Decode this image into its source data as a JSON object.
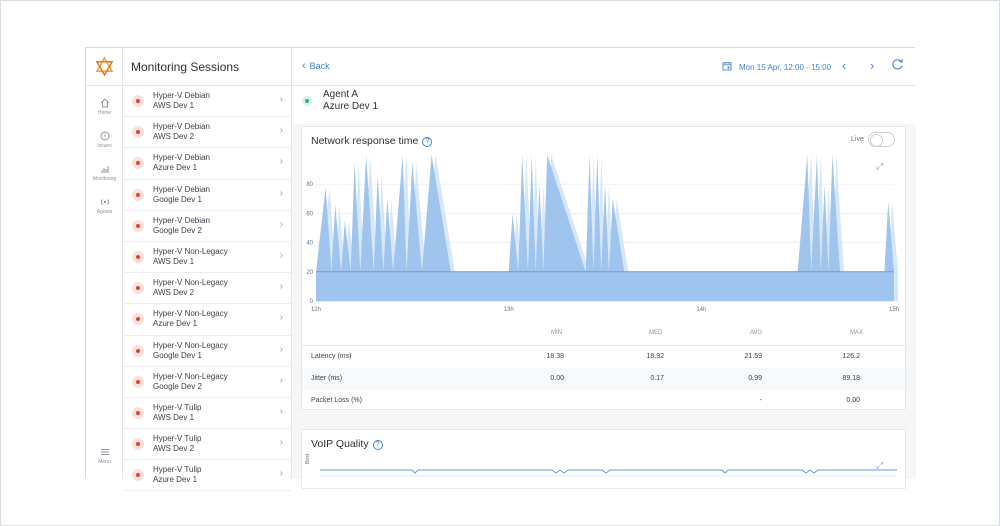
{
  "sessions_panel": {
    "title": "Monitoring Sessions",
    "items": [
      {
        "line1": "Hyper-V Debian",
        "line2": "AWS Dev 1"
      },
      {
        "line1": "Hyper-V Debian",
        "line2": "AWS Dev 2"
      },
      {
        "line1": "Hyper-V Debian",
        "line2": "Azure Dev 1"
      },
      {
        "line1": "Hyper-V Debian",
        "line2": "Google Dev 1"
      },
      {
        "line1": "Hyper-V Debian",
        "line2": "Google Dev 2"
      },
      {
        "line1": "Hyper-V Non-Legacy",
        "line2": "AWS Dev 1"
      },
      {
        "line1": "Hyper-V Non-Legacy",
        "line2": "AWS Dev 2"
      },
      {
        "line1": "Hyper-V Non-Legacy",
        "line2": "Azure Dev 1"
      },
      {
        "line1": "Hyper-V Non-Legacy",
        "line2": "Google Dev 1"
      },
      {
        "line1": "Hyper-V Non-Legacy",
        "line2": "Google Dev 2"
      },
      {
        "line1": "Hyper-V Tulip",
        "line2": "AWS Dev 1"
      },
      {
        "line1": "Hyper-V Tulip",
        "line2": "AWS Dev 2"
      },
      {
        "line1": "Hyper-V Tulip",
        "line2": "Azure Dev 1"
      }
    ]
  },
  "nav": {
    "home": "Home",
    "issues": "Issues",
    "monitoring": "Monitoring",
    "agents": "Agents",
    "menu": "Menu"
  },
  "topbar": {
    "back_label": "Back",
    "date_range": "Mon 15 Apr, 12:00 - 15:00"
  },
  "agent": {
    "name": "Agent A",
    "location": "Azure Dev 1"
  },
  "network_card": {
    "title": "Network response time",
    "live_label": "Live"
  },
  "chart_data": {
    "type": "area",
    "title": "Network response time",
    "x_ticks": [
      "12h",
      "13h",
      "14h",
      "15h"
    ],
    "y_ticks": [
      0,
      20,
      40,
      60,
      80
    ],
    "ylim": [
      0,
      100
    ],
    "xlim": [
      12,
      15
    ],
    "baseline": 20,
    "series": [
      {
        "x": [
          12.0,
          12.05,
          12.08,
          12.1,
          12.13,
          12.15,
          12.18,
          12.2,
          12.23,
          12.26,
          12.3,
          12.32,
          12.35,
          12.37,
          12.4,
          12.45,
          12.47,
          12.5,
          12.55,
          12.6,
          12.7,
          12.8,
          12.95,
          13.0,
          13.02,
          13.05,
          13.07,
          13.1,
          13.12,
          13.14,
          13.16,
          13.18,
          13.2,
          13.4,
          13.42,
          13.44,
          13.46,
          13.48,
          13.5,
          13.52,
          13.54,
          13.6,
          13.95,
          14.0,
          14.05,
          14.5,
          14.55,
          14.57,
          14.6,
          14.62,
          14.64,
          14.66,
          14.68,
          14.72,
          14.95,
          14.97,
          15.0
        ],
        "values": [
          20,
          78,
          20,
          66,
          20,
          55,
          20,
          95,
          20,
          100,
          20,
          86,
          20,
          70,
          20,
          100,
          20,
          95,
          20,
          100,
          20,
          20,
          20,
          20,
          60,
          20,
          100,
          20,
          100,
          20,
          80,
          20,
          100,
          20,
          100,
          20,
          100,
          20,
          80,
          20,
          70,
          20,
          20,
          20,
          20,
          20,
          100,
          20,
          100,
          20,
          80,
          20,
          100,
          20,
          20,
          68,
          20
        ]
      }
    ]
  },
  "stats": {
    "headers": [
      "MIN",
      "MED",
      "AVG",
      "MAX"
    ],
    "rows": [
      {
        "label": "Latency (ms)",
        "min": "18.38",
        "med": "18.92",
        "avg": "21.59",
        "max": "126.2"
      },
      {
        "label": "Jitter (ms)",
        "min": "0.00",
        "med": "0.17",
        "avg": "0.99",
        "max": "89.18"
      },
      {
        "label": "Packet Loss (%)",
        "min": "",
        "med": "",
        "avg": "-",
        "max": "0.00"
      }
    ]
  },
  "voip_card": {
    "title": "VoIP Quality",
    "y_label": "Best"
  },
  "colors": {
    "accent": "#3f86d6",
    "series_fill": "#9fc4ee",
    "series_light": "#d7e7f8",
    "error_dot": "#d9463b",
    "ok_dot": "#2fb37a"
  }
}
